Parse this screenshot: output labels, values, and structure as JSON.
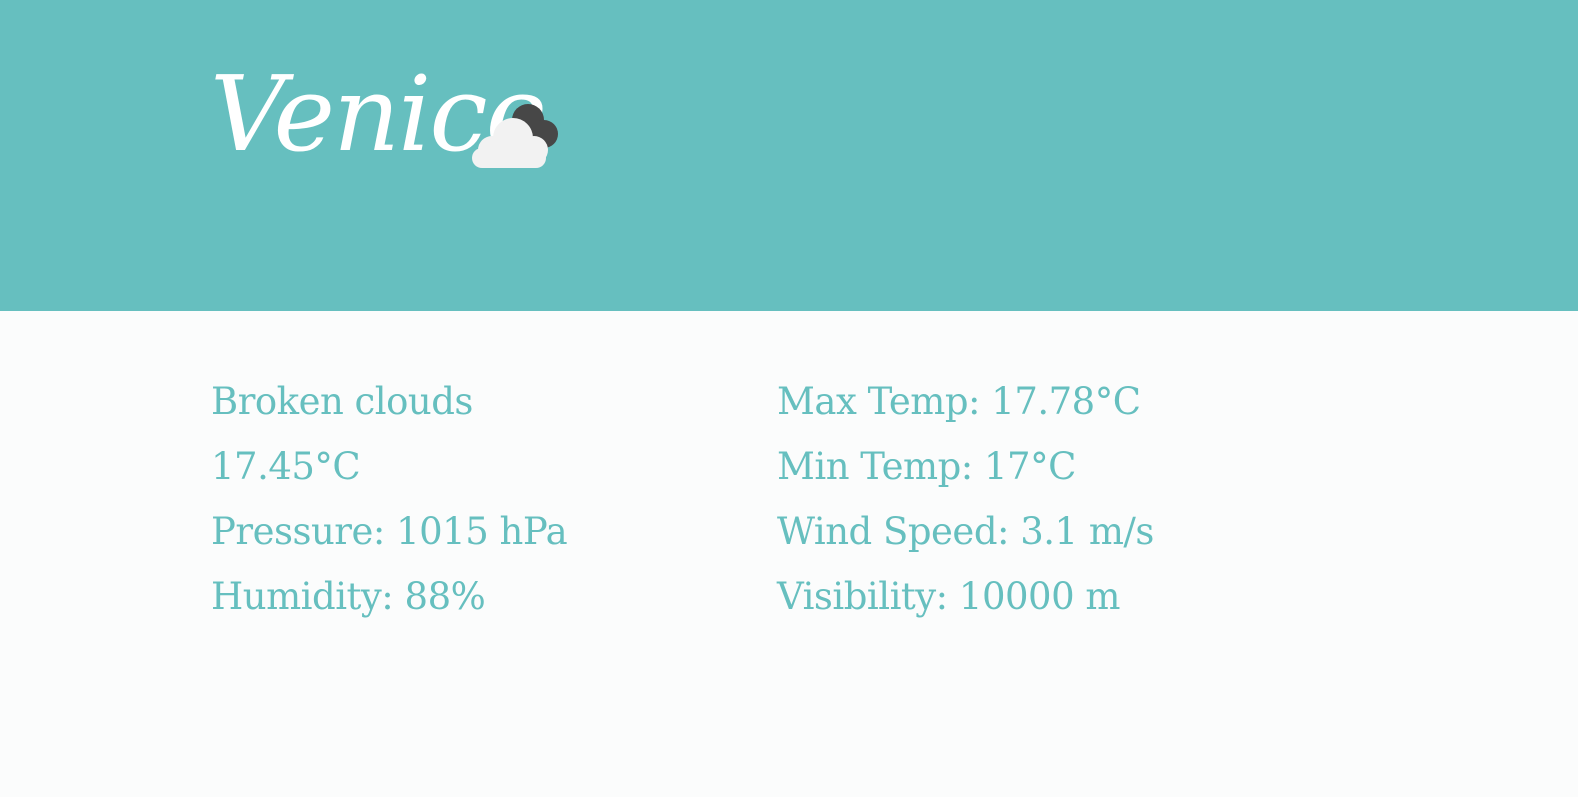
{
  "header": {
    "city": "Venice",
    "weather_icon": "broken-clouds-icon",
    "background_color": "#66bfbf"
  },
  "details": {
    "left": [
      "Broken clouds",
      "17.45°C",
      "Pressure: 1015 hPa",
      "Humidity: 88%"
    ],
    "right": [
      "Max Temp: 17.78°C",
      "Min Temp: 17°C",
      "Wind Speed: 3.1 m/s",
      "Visibility: 10000 m"
    ],
    "text_color": "#66bfbf"
  }
}
